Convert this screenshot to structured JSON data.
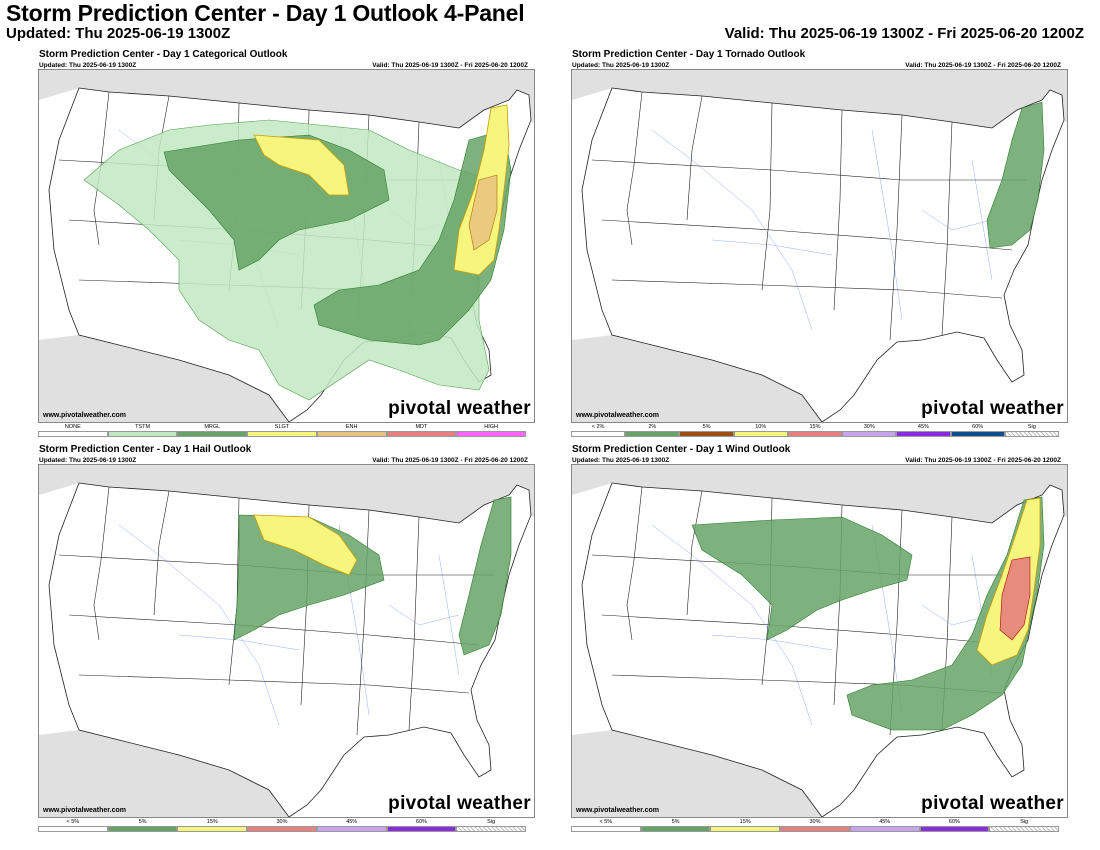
{
  "header": {
    "title": "Storm Prediction Center - Day 1 Outlook 4-Panel",
    "updated": "Updated: Thu 2025-06-19 1300Z",
    "valid": "Valid: Thu 2025-06-19 1300Z - Fri 2025-06-20 1200Z"
  },
  "panels": [
    {
      "title": "Storm Prediction Center - Day 1 Categorical Outlook",
      "updated": "Updated: Thu 2025-06-19 1300Z",
      "valid": "Valid: Thu 2025-06-19 1300Z - Fri 2025-06-20 1200Z",
      "website": "www.pivotalweather.com",
      "brand": "pivotal weather",
      "legend": [
        {
          "label": "NONE",
          "color": "#ffffff"
        },
        {
          "label": "TSTM",
          "color": "#c1e9c1"
        },
        {
          "label": "MRGL",
          "color": "#66a366"
        },
        {
          "label": "SLGT",
          "color": "#f6f67f"
        },
        {
          "label": "ENH",
          "color": "#e6c27f"
        },
        {
          "label": "MDT",
          "color": "#e67f7f"
        },
        {
          "label": "HIGH",
          "color": "#ff66ff"
        }
      ]
    },
    {
      "title": "Storm Prediction Center - Day 1 Tornado Outlook",
      "updated": "Updated: Thu 2025-06-19 1300Z",
      "valid": "Valid: Thu 2025-06-19 1300Z - Fri 2025-06-20 1200Z",
      "website": "www.pivotalweather.com",
      "brand": "pivotal weather",
      "legend": [
        {
          "label": "< 2%",
          "color": "#ffffff"
        },
        {
          "label": "2%",
          "color": "#66a366"
        },
        {
          "label": "5%",
          "color": "#9d4e15"
        },
        {
          "label": "10%",
          "color": "#f6f67f"
        },
        {
          "label": "15%",
          "color": "#e67f7f"
        },
        {
          "label": "30%",
          "color": "#c7a4f0"
        },
        {
          "label": "45%",
          "color": "#8a2be2"
        },
        {
          "label": "60%",
          "color": "#104e8b"
        },
        {
          "label": "Sig",
          "color": "hatch"
        }
      ]
    },
    {
      "title": "Storm Prediction Center - Day 1 Hail Outlook",
      "updated": "Updated: Thu 2025-06-19 1300Z",
      "valid": "Valid: Thu 2025-06-19 1300Z - Fri 2025-06-20 1200Z",
      "website": "www.pivotalweather.com",
      "brand": "pivotal weather",
      "legend": [
        {
          "label": "< 5%",
          "color": "#ffffff"
        },
        {
          "label": "5%",
          "color": "#66a366"
        },
        {
          "label": "15%",
          "color": "#f6f67f"
        },
        {
          "label": "30%",
          "color": "#e67f7f"
        },
        {
          "label": "45%",
          "color": "#c7a4f0"
        },
        {
          "label": "60%",
          "color": "#8a2be2"
        },
        {
          "label": "Sig",
          "color": "hatch"
        }
      ]
    },
    {
      "title": "Storm Prediction Center - Day 1 Wind Outlook",
      "updated": "Updated: Thu 2025-06-19 1300Z",
      "valid": "Valid: Thu 2025-06-19 1300Z - Fri 2025-06-20 1200Z",
      "website": "www.pivotalweather.com",
      "brand": "pivotal weather",
      "legend": [
        {
          "label": "< 5%",
          "color": "#ffffff"
        },
        {
          "label": "5%",
          "color": "#66a366"
        },
        {
          "label": "15%",
          "color": "#f6f67f"
        },
        {
          "label": "30%",
          "color": "#e67f7f"
        },
        {
          "label": "45%",
          "color": "#c7a4f0"
        },
        {
          "label": "60%",
          "color": "#8a2be2"
        },
        {
          "label": "Sig",
          "color": "hatch"
        }
      ]
    }
  ]
}
